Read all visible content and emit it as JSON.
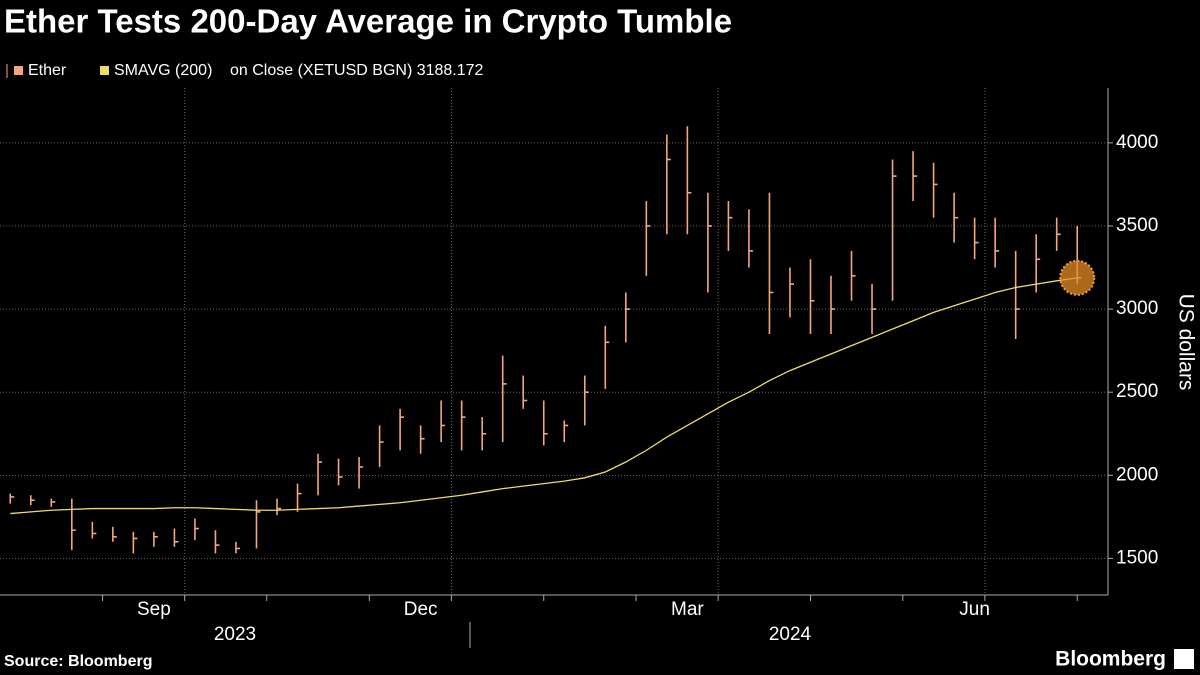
{
  "chart_data": {
    "type": "ohlc",
    "title": "Ether Tests 200-Day Average in Crypto Tumble",
    "source": "Source: Bloomberg",
    "brand": "Bloomberg",
    "y_label": "US dollars",
    "legend_note": "on Close (XETUSD BGN) 3188.172",
    "categories": [
      null,
      null,
      null,
      null,
      null,
      null,
      null,
      "Sep",
      null,
      null,
      null,
      null,
      null,
      null,
      null,
      null,
      null,
      null,
      null,
      null,
      "Dec",
      null,
      null,
      null,
      null,
      null,
      null,
      null,
      null,
      null,
      null,
      null,
      null,
      "Mar",
      null,
      null,
      null,
      null,
      null,
      null,
      null,
      null,
      null,
      null,
      null,
      null,
      null,
      "Jun",
      null,
      null,
      null,
      null,
      null
    ],
    "years": [
      "2023",
      "2024"
    ],
    "ylim": [
      1280,
      4330
    ],
    "yticks": [
      1500,
      2000,
      2500,
      3000,
      3500,
      4000
    ],
    "grid": true,
    "series": [
      {
        "name": "Ether",
        "color": "#f5a67c",
        "values": [
          1870,
          1850,
          1840,
          1670,
          1650,
          1630,
          1620,
          1630,
          1600,
          1680,
          1580,
          1560,
          1780,
          1800,
          1890,
          2080,
          1990,
          2050,
          2200,
          2350,
          2220,
          2300,
          2350,
          2250,
          2550,
          2450,
          2250,
          2300,
          2500,
          2800,
          3000,
          3500,
          3900,
          3700,
          3500,
          3550,
          3350,
          3100,
          3150,
          3050,
          3000,
          3200,
          3000,
          3800,
          3800,
          3750,
          3550,
          3400,
          3350,
          3000,
          3300,
          3450,
          3188
        ],
        "high": [
          1890,
          1880,
          1860,
          1860,
          1720,
          1690,
          1660,
          1660,
          1680,
          1740,
          1670,
          1600,
          1850,
          1860,
          1950,
          2130,
          2100,
          2110,
          2300,
          2400,
          2300,
          2450,
          2450,
          2350,
          2720,
          2600,
          2450,
          2330,
          2600,
          2900,
          3100,
          3650,
          4050,
          4100,
          3700,
          3650,
          3600,
          3700,
          3250,
          3300,
          3200,
          3350,
          3150,
          3900,
          3950,
          3880,
          3700,
          3550,
          3550,
          3350,
          3450,
          3550,
          3500
        ],
        "low": [
          1830,
          1820,
          1810,
          1550,
          1620,
          1600,
          1530,
          1570,
          1570,
          1610,
          1530,
          1530,
          1560,
          1760,
          1780,
          1880,
          1940,
          1920,
          2050,
          2150,
          2130,
          2200,
          2150,
          2150,
          2200,
          2400,
          2180,
          2200,
          2300,
          2520,
          2800,
          3200,
          3450,
          3450,
          3100,
          3350,
          3250,
          2850,
          2950,
          2850,
          2850,
          3050,
          2850,
          3050,
          3650,
          3550,
          3400,
          3300,
          3250,
          2820,
          3100,
          3350,
          3150
        ]
      },
      {
        "name": "SMAVG (200)",
        "color": "#ecdc6a",
        "values": [
          1770,
          1780,
          1790,
          1795,
          1800,
          1800,
          1800,
          1800,
          1805,
          1805,
          1800,
          1795,
          1790,
          1790,
          1795,
          1800,
          1805,
          1815,
          1825,
          1835,
          1850,
          1865,
          1880,
          1900,
          1920,
          1935,
          1950,
          1965,
          1985,
          2020,
          2080,
          2150,
          2230,
          2300,
          2370,
          2440,
          2500,
          2570,
          2630,
          2680,
          2730,
          2780,
          2830,
          2880,
          2930,
          2980,
          3020,
          3060,
          3100,
          3130,
          3150,
          3170,
          3188
        ]
      }
    ]
  }
}
